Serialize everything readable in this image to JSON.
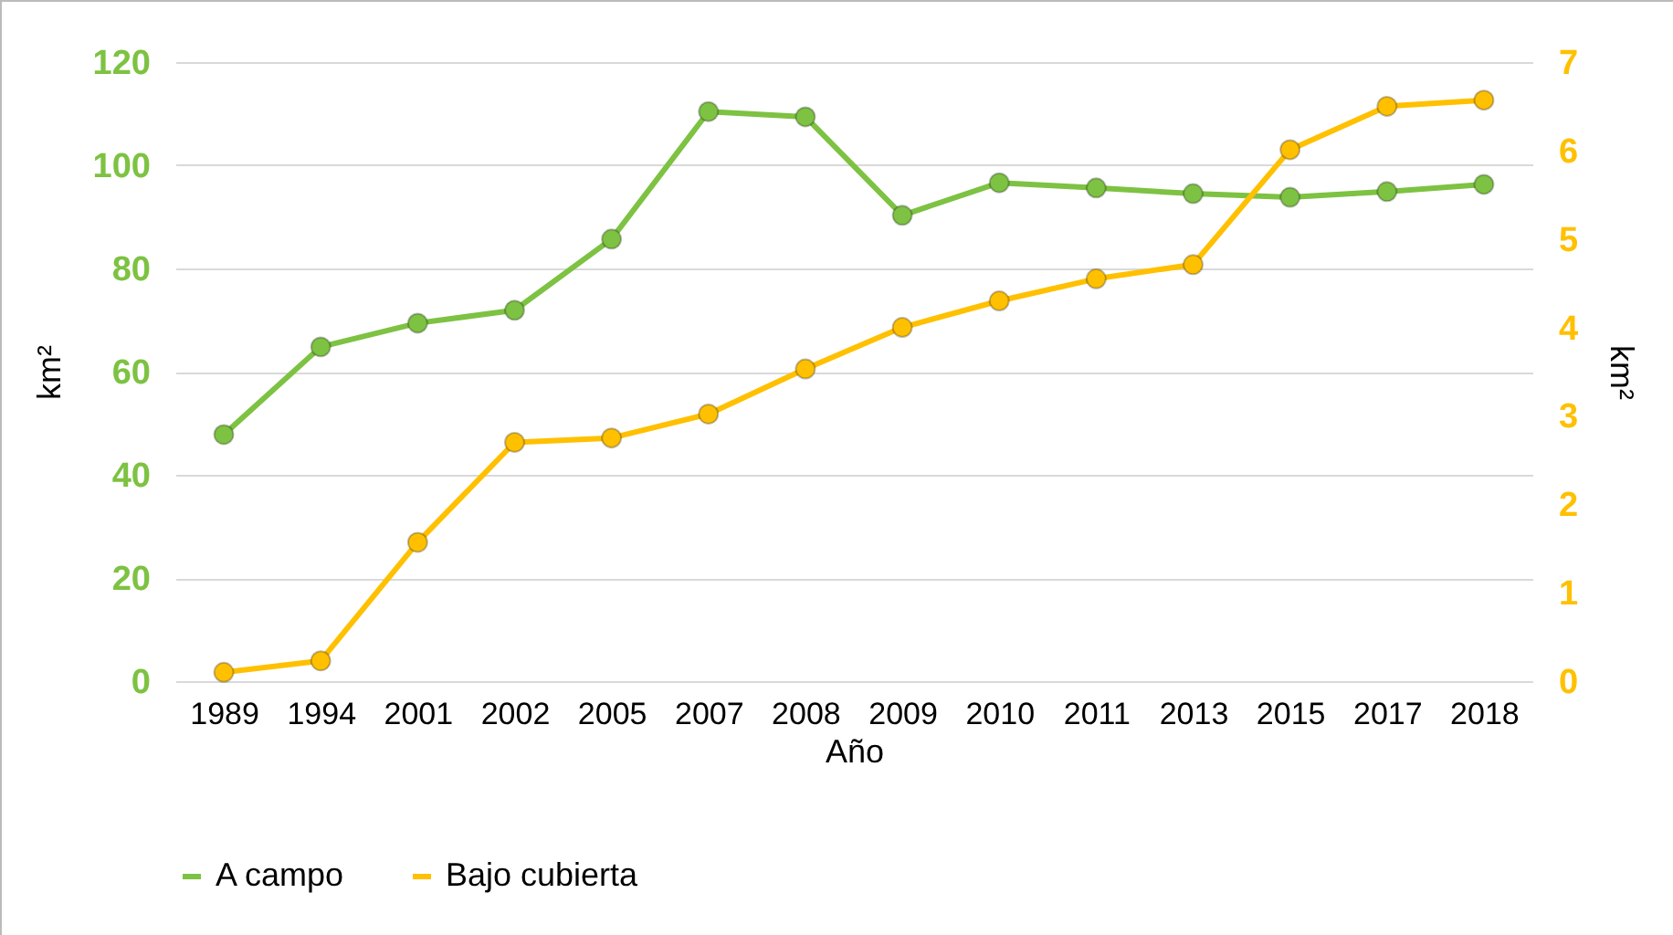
{
  "chart_data": {
    "type": "line",
    "xlabel": "Año",
    "ylabel": "km²",
    "y2label": "km²",
    "categories": [
      "1989",
      "1994",
      "2001",
      "2002",
      "2005",
      "2007",
      "2008",
      "2009",
      "2010",
      "2011",
      "2013",
      "2015",
      "2017",
      "2018"
    ],
    "series": [
      {
        "name": "A campo",
        "color": "#7dc242",
        "values": [
          47.8,
          64.8,
          69.4,
          71.9,
          85.7,
          110.4,
          109.4,
          90.3,
          96.6,
          95.6,
          94.5,
          93.8,
          94.9,
          96.3
        ]
      },
      {
        "name": "Bajo cubierta",
        "color": "#ffc000",
        "axis": "y2",
        "values": [
          0.1,
          0.23,
          1.57,
          2.7,
          2.75,
          3.02,
          3.53,
          4.0,
          4.3,
          4.55,
          4.71,
          6.01,
          6.5,
          6.57
        ]
      }
    ],
    "ylim": [
      0,
      120
    ],
    "yticks": [
      0,
      20,
      40,
      60,
      80,
      100,
      120
    ],
    "y2lim": [
      0,
      7
    ],
    "y2ticks": [
      0,
      1,
      2,
      3,
      4,
      5,
      6,
      7
    ],
    "grid": "y",
    "legend": "bottom",
    "marker": "circle",
    "line_style": "solid"
  }
}
